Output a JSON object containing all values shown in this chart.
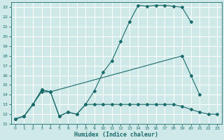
{
  "xlabel": "Humidex (Indice chaleur)",
  "background_color": "#cfe8e8",
  "grid_color": "#b8d8d8",
  "line_color": "#1a6b6b",
  "xlim": [
    -0.5,
    23.5
  ],
  "ylim": [
    11,
    23.5
  ],
  "xticks": [
    0,
    1,
    2,
    3,
    4,
    5,
    6,
    7,
    8,
    9,
    10,
    11,
    12,
    13,
    14,
    15,
    16,
    17,
    18,
    19,
    20,
    21,
    22,
    23
  ],
  "yticks": [
    11,
    12,
    13,
    14,
    15,
    16,
    17,
    18,
    19,
    20,
    21,
    22,
    23
  ],
  "s1_x": [
    0,
    1,
    2,
    3,
    4,
    5,
    6,
    7,
    8,
    9,
    10,
    11,
    12,
    13,
    14,
    15,
    16,
    17,
    18,
    19,
    20
  ],
  "s1_y": [
    11.5,
    11.8,
    13.0,
    14.5,
    14.3,
    11.8,
    12.2,
    12.0,
    13.0,
    14.4,
    16.3,
    17.5,
    19.5,
    21.5,
    23.2,
    23.1,
    23.2,
    23.2,
    23.1,
    23.0,
    21.5
  ],
  "s2_x": [
    0,
    1,
    2,
    3,
    4,
    19,
    20,
    21
  ],
  "s2_y": [
    11.5,
    11.8,
    13.0,
    14.5,
    14.3,
    18.0,
    16.0,
    14.0
  ],
  "s3_x": [
    0,
    1,
    2,
    3,
    4,
    5,
    6,
    7,
    8,
    9,
    10,
    11,
    12,
    13,
    14,
    15,
    16,
    17,
    18,
    19,
    20,
    21,
    22,
    23
  ],
  "s3_y": [
    11.5,
    11.8,
    13.0,
    14.3,
    14.3,
    11.8,
    12.2,
    12.0,
    13.0,
    13.0,
    13.0,
    13.0,
    13.0,
    13.0,
    13.0,
    13.0,
    13.0,
    13.0,
    13.0,
    12.8,
    12.5,
    12.2,
    12.0,
    12.0
  ]
}
